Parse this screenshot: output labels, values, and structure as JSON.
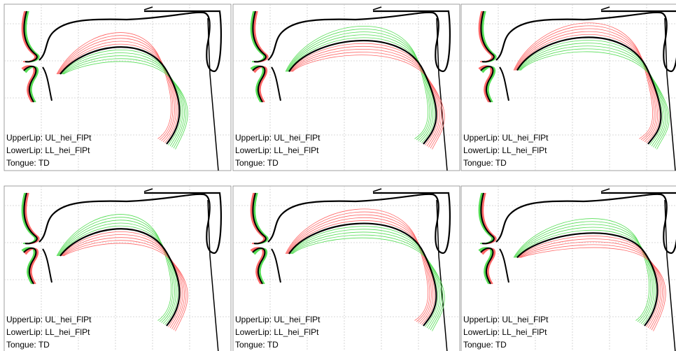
{
  "panels": [
    {
      "upper_lip": "UpperLip: UL_hei_FlPt",
      "lower_lip": "LowerLip: LL_hei_FlPt",
      "tongue": "Tongue: TD"
    },
    {
      "upper_lip": "UpperLip: UL_hei_FlPt",
      "lower_lip": "LowerLip: LL_hei_FlPt",
      "tongue": "Tongue: TD"
    },
    {
      "upper_lip": "UpperLip: UL_hei_FlPt",
      "lower_lip": "LowerLip: LL_hei_FlPt",
      "tongue": "Tongue: TD"
    },
    {
      "upper_lip": "UpperLip: UL_hei_FlPt",
      "lower_lip": "LowerLip: LL_hei_FlPt",
      "tongue": "Tongue: TD"
    },
    {
      "upper_lip": "UpperLip: UL_hei_FlPt",
      "lower_lip": "LowerLip: LL_hei_FlPt",
      "tongue": "Tongue: TD"
    },
    {
      "upper_lip": "UpperLip: UL_hei_FlPt",
      "lower_lip": "LowerLip: LL_hei_FlPt",
      "tongue": "Tongue: TD"
    }
  ]
}
